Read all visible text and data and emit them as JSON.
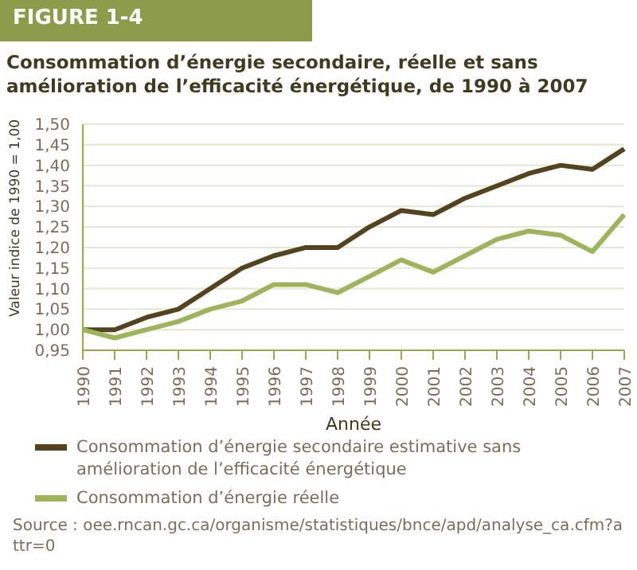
{
  "chart_data": {
    "type": "line",
    "title": "FIGURE 1-4",
    "subtitle": "Consommation d’énergie secondaire, réelle et sans amélioration de l’efficacité énergétique, de 1990 à 2007",
    "xlabel": "Année",
    "ylabel": "Valeur indice de 1990 = 1,00",
    "categories": [
      "1990",
      "1991",
      "1992",
      "1993",
      "1994",
      "1995",
      "1996",
      "1997",
      "1998",
      "1999",
      "2000",
      "2001",
      "2002",
      "2003",
      "2004",
      "2005",
      "2006",
      "2007"
    ],
    "series": [
      {
        "name": "Consommation d’énergie secondaire estimative sans amélioration de l’efficacité énergétique",
        "color": "#55431f",
        "values": [
          1.0,
          1.0,
          1.03,
          1.05,
          1.1,
          1.15,
          1.18,
          1.2,
          1.2,
          1.25,
          1.29,
          1.28,
          1.32,
          1.35,
          1.38,
          1.4,
          1.39,
          1.44
        ]
      },
      {
        "name": "Consommation d’énergie réelle",
        "color": "#9db45c",
        "values": [
          1.0,
          0.98,
          1.0,
          1.02,
          1.05,
          1.07,
          1.11,
          1.11,
          1.09,
          1.13,
          1.17,
          1.14,
          1.18,
          1.22,
          1.24,
          1.23,
          1.19,
          1.28
        ]
      }
    ],
    "ylim": [
      0.95,
      1.5
    ],
    "yticks": [
      {
        "value": 0.95,
        "label": "0,95"
      },
      {
        "value": 1.0,
        "label": "1,00"
      },
      {
        "value": 1.05,
        "label": "1,05"
      },
      {
        "value": 1.1,
        "label": "1,10"
      },
      {
        "value": 1.15,
        "label": "1,15"
      },
      {
        "value": 1.2,
        "label": "1,20"
      },
      {
        "value": 1.25,
        "label": "1,25"
      },
      {
        "value": 1.3,
        "label": "1,30"
      },
      {
        "value": 1.35,
        "label": "1,35"
      },
      {
        "value": 1.4,
        "label": "1,40"
      },
      {
        "value": 1.45,
        "label": "1,45"
      },
      {
        "value": 1.5,
        "label": "1,50"
      }
    ],
    "grid": "y",
    "legend": "bottom",
    "marker": "none",
    "line_style": "solid",
    "annotations": [
      "Source : oee.rncan.gc.ca/organisme/statistiques/bnce/apd/analyse_ca.cfm?attr=0"
    ]
  }
}
